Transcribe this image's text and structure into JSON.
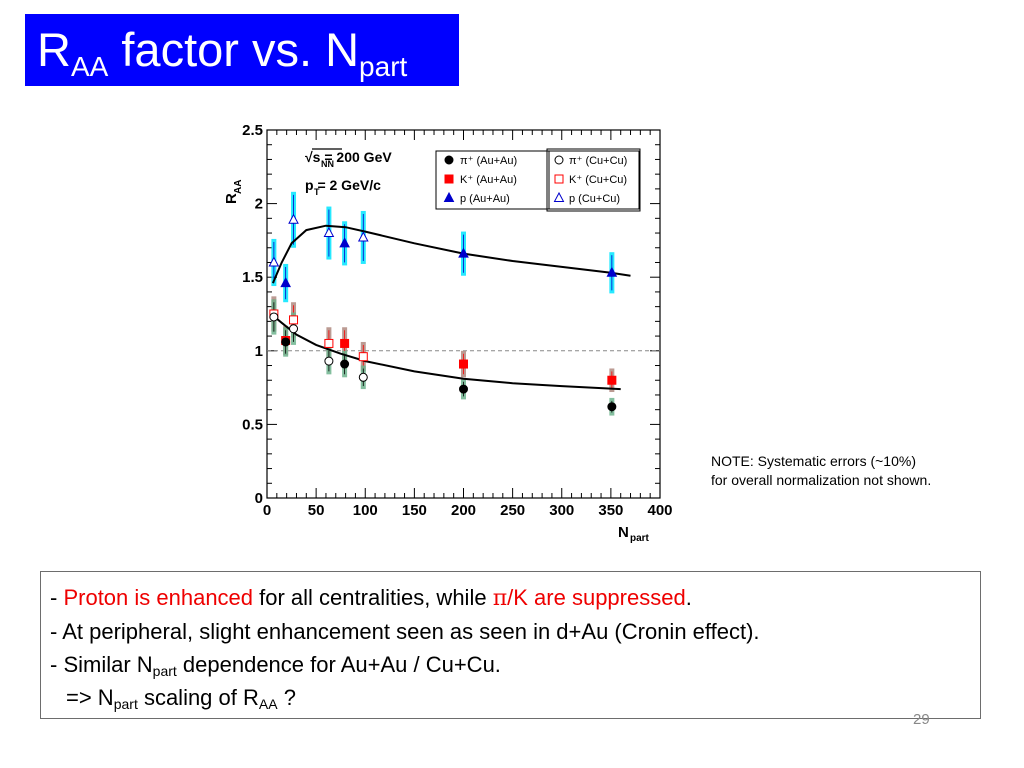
{
  "slide": {
    "title_main": "R",
    "title_main_sub": "AA",
    "title_rest": " factor vs. N",
    "title_rest_sub": "part",
    "note_line1": "NOTE: Systematic errors (~10%)",
    "note_line2": "for overall normalization not shown.",
    "bullets": {
      "l1_dash": "- ",
      "l1_red1": "Proton is enhanced",
      "l1_mid": " for all centralities, while ",
      "l1_pi": "π",
      "l1_red2": "/K are suppressed",
      "l1_end": ".",
      "l2": "- At peripheral, slight enhancement seen as seen in d+Au (Cronin effect).",
      "l3_a": "- Similar N",
      "l3_sub": "part",
      "l3_b": " dependence for Au+Au / Cu+Cu.",
      "l4_a": "=> N",
      "l4_sub": "part",
      "l4_b": " scaling of R",
      "l4_sub2": "AA",
      "l4_c": " ?"
    },
    "page_number": "29"
  },
  "colors": {
    "title_bg": "#0000ff",
    "highlight_red": "#ee0000",
    "proton_blue": "#0000cc",
    "proton_sys": "#00e5ff",
    "pion": "#000000",
    "kaon_red": "#ff0000",
    "kaon_sys": "#b08a80",
    "pion_sys": "#6fb48e"
  },
  "chart_data": {
    "type": "scatter",
    "xlabel": "N",
    "xlabel_sub": "part",
    "ylabel": "R",
    "ylabel_sub": "AA",
    "xlim": [
      0,
      400
    ],
    "ylim": [
      0,
      2.5
    ],
    "x_ticks": [
      0,
      50,
      100,
      150,
      200,
      250,
      300,
      350,
      400
    ],
    "y_ticks": [
      0,
      0.5,
      1,
      1.5,
      2,
      2.5
    ],
    "x_tick_labels": [
      "0",
      "50",
      "100",
      "150",
      "200",
      "250",
      "300",
      "350",
      "400"
    ],
    "y_tick_labels": [
      "0",
      "0.5",
      "1",
      "1.5",
      "2",
      "2.5"
    ],
    "reference_line": 1,
    "annotation_energy": "√s = 200 GeV",
    "annotation_energy_sub": "NN",
    "annotation_pt": "p = 2 GeV/c",
    "annotation_pt_sub": "T",
    "legend_placement": "top-right",
    "legend_left": [
      {
        "key": "pi_au",
        "label": "π⁺ (Au+Au)"
      },
      {
        "key": "k_au",
        "label": "K⁺ (Au+Au)"
      },
      {
        "key": "p_au",
        "label": "p (Au+Au)"
      }
    ],
    "legend_right": [
      {
        "key": "pi_cu",
        "label": "π⁺ (Cu+Cu)"
      },
      {
        "key": "k_cu",
        "label": "K⁺ (Cu+Cu)"
      },
      {
        "key": "p_cu",
        "label": "p (Cu+Cu)"
      }
    ],
    "series": [
      {
        "key": "p_au",
        "marker": "triangle",
        "filled": true,
        "color": "#0000cc",
        "sys_color": "#00e5ff",
        "points": [
          [
            19,
            1.46,
            0.13
          ],
          [
            79,
            1.73,
            0.15
          ],
          [
            200,
            1.66,
            0.15
          ],
          [
            351,
            1.53,
            0.14
          ]
        ]
      },
      {
        "key": "p_cu",
        "marker": "triangle",
        "filled": false,
        "color": "#0000cc",
        "sys_color": "#00e5ff",
        "points": [
          [
            7,
            1.6,
            0.16
          ],
          [
            27,
            1.89,
            0.19
          ],
          [
            63,
            1.8,
            0.18
          ],
          [
            98,
            1.77,
            0.18
          ]
        ]
      },
      {
        "key": "k_au",
        "marker": "square",
        "filled": true,
        "color": "#ff0000",
        "sys_color": "#b08a80",
        "points": [
          [
            19,
            1.07,
            0.1
          ],
          [
            79,
            1.05,
            0.11
          ],
          [
            200,
            0.91,
            0.09
          ],
          [
            351,
            0.8,
            0.08
          ]
        ]
      },
      {
        "key": "k_cu",
        "marker": "square",
        "filled": false,
        "color": "#ff0000",
        "sys_color": "#b08a80",
        "points": [
          [
            7,
            1.25,
            0.12
          ],
          [
            27,
            1.21,
            0.12
          ],
          [
            63,
            1.05,
            0.11
          ],
          [
            98,
            0.96,
            0.1
          ]
        ]
      },
      {
        "key": "pi_au",
        "marker": "circle",
        "filled": true,
        "color": "#000000",
        "sys_color": "#6fb48e",
        "points": [
          [
            19,
            1.06,
            0.1
          ],
          [
            79,
            0.91,
            0.09
          ],
          [
            200,
            0.74,
            0.07
          ],
          [
            351,
            0.62,
            0.06
          ]
        ]
      },
      {
        "key": "pi_cu",
        "marker": "circle",
        "filled": false,
        "color": "#000000",
        "sys_color": "#6fb48e",
        "points": [
          [
            7,
            1.23,
            0.12
          ],
          [
            27,
            1.15,
            0.11
          ],
          [
            63,
            0.93,
            0.09
          ],
          [
            98,
            0.82,
            0.08
          ]
        ]
      }
    ],
    "curves": [
      {
        "key": "proton_fit",
        "points": [
          [
            6,
            1.46
          ],
          [
            15,
            1.6
          ],
          [
            25,
            1.73
          ],
          [
            40,
            1.82
          ],
          [
            60,
            1.85
          ],
          [
            80,
            1.84
          ],
          [
            100,
            1.81
          ],
          [
            150,
            1.73
          ],
          [
            200,
            1.66
          ],
          [
            250,
            1.61
          ],
          [
            300,
            1.57
          ],
          [
            350,
            1.53
          ],
          [
            370,
            1.51
          ]
        ]
      },
      {
        "key": "meson_fit",
        "points": [
          [
            6,
            1.24
          ],
          [
            15,
            1.19
          ],
          [
            30,
            1.11
          ],
          [
            50,
            1.04
          ],
          [
            75,
            0.98
          ],
          [
            100,
            0.93
          ],
          [
            150,
            0.86
          ],
          [
            200,
            0.81
          ],
          [
            250,
            0.78
          ],
          [
            300,
            0.76
          ],
          [
            360,
            0.74
          ]
        ]
      }
    ]
  }
}
